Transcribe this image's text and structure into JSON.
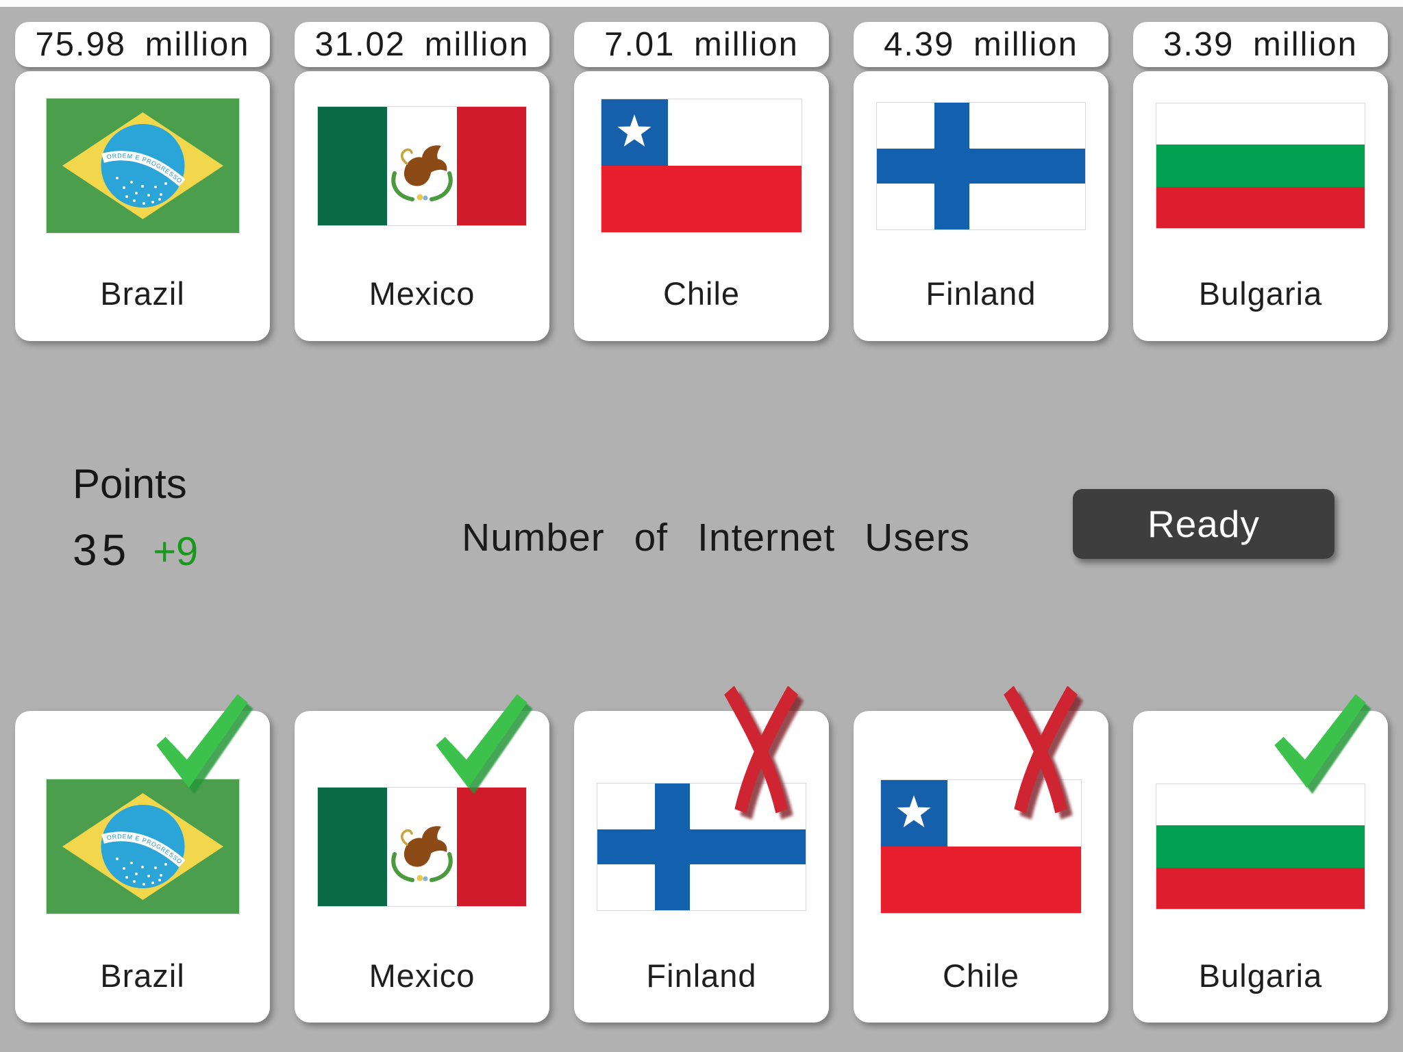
{
  "screen": {
    "background_color": "#b1b1b1",
    "top_strip_color": "#fcfcfc"
  },
  "hud": {
    "points_label": "Points",
    "points_value": "35",
    "points_gain": "+9",
    "points_gain_color": "#18991b",
    "title": "Number of Internet Users",
    "ready_label": "Ready",
    "ready_bg_color": "#3e3e3e"
  },
  "header_cards": [
    {
      "value": "75.98 million",
      "country": "Brazil",
      "flag": "brazil"
    },
    {
      "value": "31.02 million",
      "country": "Mexico",
      "flag": "mexico"
    },
    {
      "value": "7.01 million",
      "country": "Chile",
      "flag": "chile"
    },
    {
      "value": "4.39 million",
      "country": "Finland",
      "flag": "finland"
    },
    {
      "value": "3.39 million",
      "country": "Bulgaria",
      "flag": "bulgaria"
    }
  ],
  "answer_cards": [
    {
      "country": "Brazil",
      "flag": "brazil",
      "result": "correct"
    },
    {
      "country": "Mexico",
      "flag": "mexico",
      "result": "correct"
    },
    {
      "country": "Finland",
      "flag": "finland",
      "result": "wrong"
    },
    {
      "country": "Chile",
      "flag": "chile",
      "result": "wrong"
    },
    {
      "country": "Bulgaria",
      "flag": "bulgaria",
      "result": "correct"
    }
  ],
  "marks": {
    "correct_color": "#3cc24c",
    "wrong_color": "#cf2533"
  },
  "flag_palette": {
    "border": "#d6d6d6",
    "brazil": {
      "green": "#4a9e4c",
      "yellow": "#f2d74c",
      "blue": "#2ba5d8",
      "band": "#ffffff",
      "band_text": "#2596c4",
      "band_motto": "ORDEM E PROGRESSO",
      "stars": "#ffffff"
    },
    "mexico": {
      "green": "#086a47",
      "white": "#ffffff",
      "red": "#cf1b2b",
      "eagle": "#8c4a17",
      "wreath": "#4c9a3e",
      "knot": "#e8c94f",
      "ribbon": "#7fb2d8",
      "snake": "#caa23a"
    },
    "chile": {
      "blue": "#1660ab",
      "red": "#e8202d",
      "white": "#ffffff",
      "star": "#ffffff"
    },
    "finland": {
      "white": "#ffffff",
      "blue": "#1261ae"
    },
    "bulgaria": {
      "white": "#ffffff",
      "green": "#00a050",
      "red": "#dd1f2d"
    }
  }
}
